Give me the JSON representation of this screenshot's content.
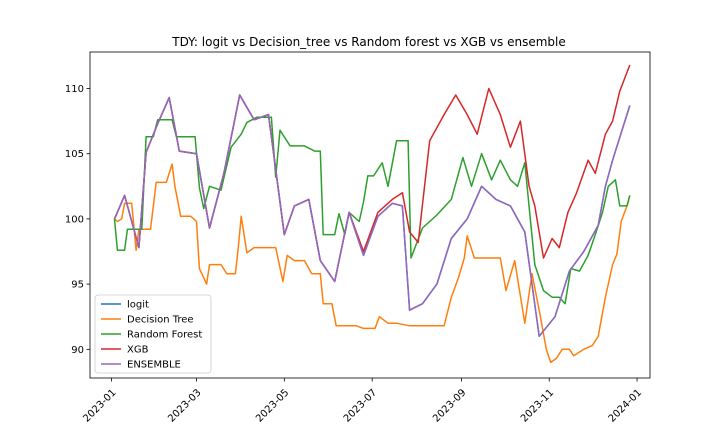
{
  "chart_data": {
    "type": "line",
    "title": "TDY: logit vs Decision_tree vs Random forest vs XGB vs ensemble",
    "xlabel": "",
    "ylabel": "",
    "x_range": [
      "2022-12-17",
      "2024-01-10"
    ],
    "ylim": [
      87.8,
      112.8
    ],
    "x_ticks": [
      "2023-01",
      "2023-03",
      "2023-05",
      "2023-07",
      "2023-09",
      "2023-11",
      "2024-01"
    ],
    "x_tick_dates": [
      "2023-01-01",
      "2023-03-01",
      "2023-05-01",
      "2023-07-01",
      "2023-09-01",
      "2023-11-01",
      "2024-01-01"
    ],
    "y_ticks": [
      90,
      95,
      100,
      105,
      110
    ],
    "grid": false,
    "legend_position": "lower-left",
    "series": [
      {
        "name": "logit",
        "color": "#1f77b4",
        "points": [
          [
            "2023-01-03",
            100.0
          ],
          [
            "2023-01-10",
            101.8
          ],
          [
            "2023-01-20",
            97.8
          ],
          [
            "2023-01-25",
            105.1
          ],
          [
            "2023-02-02",
            107.3
          ],
          [
            "2023-02-10",
            109.3
          ],
          [
            "2023-02-17",
            105.2
          ],
          [
            "2023-03-01",
            105.0
          ],
          [
            "2023-03-10",
            99.3
          ],
          [
            "2023-03-20",
            103.5
          ],
          [
            "2023-03-31",
            109.5
          ],
          [
            "2023-04-10",
            107.6
          ],
          [
            "2023-04-20",
            108.0
          ],
          [
            "2023-05-01",
            98.8
          ],
          [
            "2023-05-08",
            101.0
          ],
          [
            "2023-05-18",
            101.5
          ],
          [
            "2023-05-26",
            96.8
          ],
          [
            "2023-06-05",
            95.2
          ],
          [
            "2023-06-15",
            100.5
          ],
          [
            "2023-06-25",
            97.2
          ],
          [
            "2023-07-05",
            100.2
          ],
          [
            "2023-07-15",
            101.2
          ],
          [
            "2023-07-22",
            101.0
          ],
          [
            "2023-07-27",
            93.0
          ],
          [
            "2023-08-05",
            93.5
          ],
          [
            "2023-08-15",
            95.0
          ],
          [
            "2023-08-25",
            98.5
          ],
          [
            "2023-09-05",
            100.0
          ],
          [
            "2023-09-15",
            102.5
          ],
          [
            "2023-09-25",
            101.5
          ],
          [
            "2023-10-05",
            101.0
          ],
          [
            "2023-10-15",
            99.0
          ],
          [
            "2023-10-25",
            91.0
          ],
          [
            "2023-11-05",
            92.5
          ],
          [
            "2023-11-15",
            96.0
          ],
          [
            "2023-11-25",
            97.5
          ],
          [
            "2023-12-05",
            99.5
          ],
          [
            "2023-12-10",
            102.5
          ],
          [
            "2023-12-15",
            104.5
          ],
          [
            "2023-12-27",
            108.7
          ]
        ]
      },
      {
        "name": "Decision Tree",
        "color": "#ff7f0e",
        "points": [
          [
            "2023-01-03",
            100.0
          ],
          [
            "2023-01-05",
            99.8
          ],
          [
            "2023-01-08",
            100.0
          ],
          [
            "2023-01-10",
            101.2
          ],
          [
            "2023-01-15",
            101.2
          ],
          [
            "2023-01-18",
            97.6
          ],
          [
            "2023-01-20",
            99.2
          ],
          [
            "2023-01-28",
            99.2
          ],
          [
            "2023-02-01",
            102.8
          ],
          [
            "2023-02-08",
            102.8
          ],
          [
            "2023-02-12",
            104.2
          ],
          [
            "2023-02-14",
            102.5
          ],
          [
            "2023-02-18",
            100.2
          ],
          [
            "2023-02-25",
            100.2
          ],
          [
            "2023-03-01",
            99.8
          ],
          [
            "2023-03-03",
            96.2
          ],
          [
            "2023-03-08",
            95.0
          ],
          [
            "2023-03-10",
            96.5
          ],
          [
            "2023-03-18",
            96.5
          ],
          [
            "2023-03-22",
            95.8
          ],
          [
            "2023-03-28",
            95.8
          ],
          [
            "2023-03-30",
            97.8
          ],
          [
            "2023-04-01",
            100.2
          ],
          [
            "2023-04-05",
            97.4
          ],
          [
            "2023-04-10",
            97.8
          ],
          [
            "2023-04-25",
            97.8
          ],
          [
            "2023-04-30",
            95.2
          ],
          [
            "2023-05-03",
            97.2
          ],
          [
            "2023-05-08",
            96.8
          ],
          [
            "2023-05-15",
            96.8
          ],
          [
            "2023-05-20",
            95.8
          ],
          [
            "2023-05-26",
            95.8
          ],
          [
            "2023-05-28",
            93.5
          ],
          [
            "2023-06-03",
            93.5
          ],
          [
            "2023-06-06",
            91.8
          ],
          [
            "2023-06-15",
            91.8
          ],
          [
            "2023-06-20",
            91.8
          ],
          [
            "2023-06-25",
            91.6
          ],
          [
            "2023-07-03",
            91.6
          ],
          [
            "2023-07-06",
            92.5
          ],
          [
            "2023-07-12",
            92.0
          ],
          [
            "2023-07-18",
            92.0
          ],
          [
            "2023-07-27",
            91.8
          ],
          [
            "2023-08-10",
            91.8
          ],
          [
            "2023-08-20",
            91.8
          ],
          [
            "2023-08-25",
            94.0
          ],
          [
            "2023-08-30",
            95.5
          ],
          [
            "2023-09-03",
            97.0
          ],
          [
            "2023-09-05",
            98.7
          ],
          [
            "2023-09-10",
            97.0
          ],
          [
            "2023-09-20",
            97.0
          ],
          [
            "2023-09-28",
            97.0
          ],
          [
            "2023-10-02",
            94.5
          ],
          [
            "2023-10-08",
            96.8
          ],
          [
            "2023-10-15",
            92.0
          ],
          [
            "2023-10-20",
            95.8
          ],
          [
            "2023-10-25",
            93.0
          ],
          [
            "2023-10-30",
            90.0
          ],
          [
            "2023-11-02",
            89.0
          ],
          [
            "2023-11-06",
            89.3
          ],
          [
            "2023-11-10",
            90.0
          ],
          [
            "2023-11-15",
            90.0
          ],
          [
            "2023-11-18",
            89.5
          ],
          [
            "2023-11-25",
            90.0
          ],
          [
            "2023-12-01",
            90.3
          ],
          [
            "2023-12-05",
            91.0
          ],
          [
            "2023-12-10",
            94.0
          ],
          [
            "2023-12-15",
            96.5
          ],
          [
            "2023-12-18",
            97.3
          ],
          [
            "2023-12-21",
            99.8
          ],
          [
            "2023-12-25",
            101.0
          ],
          [
            "2023-12-27",
            101.8
          ]
        ]
      },
      {
        "name": "Random Forest",
        "color": "#2ca02c",
        "points": [
          [
            "2023-01-03",
            100.0
          ],
          [
            "2023-01-05",
            97.6
          ],
          [
            "2023-01-10",
            97.6
          ],
          [
            "2023-01-12",
            99.2
          ],
          [
            "2023-01-22",
            99.2
          ],
          [
            "2023-01-25",
            106.3
          ],
          [
            "2023-01-30",
            106.3
          ],
          [
            "2023-02-02",
            107.6
          ],
          [
            "2023-02-10",
            107.6
          ],
          [
            "2023-02-12",
            107.6
          ],
          [
            "2023-02-15",
            106.3
          ],
          [
            "2023-02-28",
            106.3
          ],
          [
            "2023-03-03",
            102.4
          ],
          [
            "2023-03-06",
            100.8
          ],
          [
            "2023-03-10",
            102.5
          ],
          [
            "2023-03-18",
            102.2
          ],
          [
            "2023-03-25",
            105.5
          ],
          [
            "2023-04-01",
            106.5
          ],
          [
            "2023-04-05",
            107.4
          ],
          [
            "2023-04-12",
            107.8
          ],
          [
            "2023-04-22",
            107.8
          ],
          [
            "2023-04-25",
            103.2
          ],
          [
            "2023-04-28",
            106.8
          ],
          [
            "2023-05-05",
            105.6
          ],
          [
            "2023-05-15",
            105.6
          ],
          [
            "2023-05-22",
            105.2
          ],
          [
            "2023-05-26",
            105.2
          ],
          [
            "2023-05-28",
            98.8
          ],
          [
            "2023-06-05",
            98.8
          ],
          [
            "2023-06-08",
            100.4
          ],
          [
            "2023-06-12",
            98.8
          ],
          [
            "2023-06-15",
            100.5
          ],
          [
            "2023-06-22",
            99.8
          ],
          [
            "2023-06-25",
            101.3
          ],
          [
            "2023-06-28",
            103.3
          ],
          [
            "2023-07-02",
            103.3
          ],
          [
            "2023-07-08",
            104.3
          ],
          [
            "2023-07-12",
            102.5
          ],
          [
            "2023-07-18",
            106.0
          ],
          [
            "2023-07-26",
            106.0
          ],
          [
            "2023-07-28",
            97.0
          ],
          [
            "2023-08-05",
            99.3
          ],
          [
            "2023-08-15",
            100.3
          ],
          [
            "2023-08-25",
            101.5
          ],
          [
            "2023-09-02",
            104.7
          ],
          [
            "2023-09-08",
            102.5
          ],
          [
            "2023-09-15",
            105.0
          ],
          [
            "2023-09-22",
            103.0
          ],
          [
            "2023-09-28",
            104.5
          ],
          [
            "2023-10-05",
            103.0
          ],
          [
            "2023-10-10",
            102.5
          ],
          [
            "2023-10-15",
            104.3
          ],
          [
            "2023-10-22",
            96.5
          ],
          [
            "2023-10-28",
            94.5
          ],
          [
            "2023-11-03",
            94.0
          ],
          [
            "2023-11-08",
            94.0
          ],
          [
            "2023-11-12",
            93.5
          ],
          [
            "2023-11-16",
            96.2
          ],
          [
            "2023-11-22",
            96.0
          ],
          [
            "2023-11-28",
            97.2
          ],
          [
            "2023-12-03",
            98.8
          ],
          [
            "2023-12-08",
            100.5
          ],
          [
            "2023-12-12",
            102.5
          ],
          [
            "2023-12-17",
            103.0
          ],
          [
            "2023-12-20",
            101.0
          ],
          [
            "2023-12-25",
            101.0
          ],
          [
            "2023-12-27",
            101.8
          ]
        ]
      },
      {
        "name": "XGB",
        "color": "#d62728",
        "points": [
          [
            "2023-01-03",
            100.0
          ],
          [
            "2023-01-10",
            101.8
          ],
          [
            "2023-01-20",
            97.8
          ],
          [
            "2023-01-25",
            105.1
          ],
          [
            "2023-02-02",
            107.3
          ],
          [
            "2023-02-10",
            109.3
          ],
          [
            "2023-02-17",
            105.2
          ],
          [
            "2023-03-01",
            105.0
          ],
          [
            "2023-03-10",
            99.3
          ],
          [
            "2023-03-20",
            103.5
          ],
          [
            "2023-03-31",
            109.5
          ],
          [
            "2023-04-10",
            107.6
          ],
          [
            "2023-04-20",
            108.0
          ],
          [
            "2023-05-01",
            98.8
          ],
          [
            "2023-05-08",
            101.0
          ],
          [
            "2023-05-18",
            101.5
          ],
          [
            "2023-05-26",
            96.8
          ],
          [
            "2023-06-05",
            95.2
          ],
          [
            "2023-06-15",
            100.5
          ],
          [
            "2023-06-25",
            97.5
          ],
          [
            "2023-07-05",
            100.5
          ],
          [
            "2023-07-15",
            101.5
          ],
          [
            "2023-07-22",
            102.0
          ],
          [
            "2023-07-27",
            99.0
          ],
          [
            "2023-08-02",
            98.2
          ],
          [
            "2023-08-10",
            106.0
          ],
          [
            "2023-08-20",
            108.0
          ],
          [
            "2023-08-28",
            109.5
          ],
          [
            "2023-09-05",
            108.0
          ],
          [
            "2023-09-12",
            106.5
          ],
          [
            "2023-09-20",
            110.0
          ],
          [
            "2023-09-28",
            108.0
          ],
          [
            "2023-10-05",
            105.5
          ],
          [
            "2023-10-12",
            107.5
          ],
          [
            "2023-10-18",
            102.5
          ],
          [
            "2023-10-22",
            101.0
          ],
          [
            "2023-10-28",
            97.0
          ],
          [
            "2023-11-03",
            98.5
          ],
          [
            "2023-11-08",
            97.8
          ],
          [
            "2023-11-14",
            100.5
          ],
          [
            "2023-11-20",
            102.0
          ],
          [
            "2023-11-28",
            104.5
          ],
          [
            "2023-12-03",
            103.5
          ],
          [
            "2023-12-10",
            106.5
          ],
          [
            "2023-12-15",
            107.5
          ],
          [
            "2023-12-20",
            109.8
          ],
          [
            "2023-12-27",
            111.8
          ]
        ]
      },
      {
        "name": "ENSEMBLE",
        "color": "#9467bd",
        "points": [
          [
            "2023-01-03",
            100.0
          ],
          [
            "2023-01-10",
            101.8
          ],
          [
            "2023-01-20",
            97.8
          ],
          [
            "2023-01-25",
            105.1
          ],
          [
            "2023-02-02",
            107.3
          ],
          [
            "2023-02-10",
            109.3
          ],
          [
            "2023-02-17",
            105.2
          ],
          [
            "2023-03-01",
            105.0
          ],
          [
            "2023-03-10",
            99.3
          ],
          [
            "2023-03-20",
            103.5
          ],
          [
            "2023-03-31",
            109.5
          ],
          [
            "2023-04-10",
            107.6
          ],
          [
            "2023-04-20",
            108.0
          ],
          [
            "2023-05-01",
            98.8
          ],
          [
            "2023-05-08",
            101.0
          ],
          [
            "2023-05-18",
            101.5
          ],
          [
            "2023-05-26",
            96.8
          ],
          [
            "2023-06-05",
            95.2
          ],
          [
            "2023-06-15",
            100.5
          ],
          [
            "2023-06-25",
            97.2
          ],
          [
            "2023-07-05",
            100.2
          ],
          [
            "2023-07-15",
            101.2
          ],
          [
            "2023-07-22",
            101.0
          ],
          [
            "2023-07-27",
            93.0
          ],
          [
            "2023-08-05",
            93.5
          ],
          [
            "2023-08-15",
            95.0
          ],
          [
            "2023-08-25",
            98.5
          ],
          [
            "2023-09-05",
            100.0
          ],
          [
            "2023-09-15",
            102.5
          ],
          [
            "2023-09-25",
            101.5
          ],
          [
            "2023-10-05",
            101.0
          ],
          [
            "2023-10-15",
            99.0
          ],
          [
            "2023-10-25",
            91.0
          ],
          [
            "2023-11-05",
            92.5
          ],
          [
            "2023-11-15",
            96.0
          ],
          [
            "2023-11-25",
            97.5
          ],
          [
            "2023-12-05",
            99.5
          ],
          [
            "2023-12-10",
            102.5
          ],
          [
            "2023-12-15",
            104.5
          ],
          [
            "2023-12-27",
            108.7
          ]
        ]
      }
    ]
  }
}
